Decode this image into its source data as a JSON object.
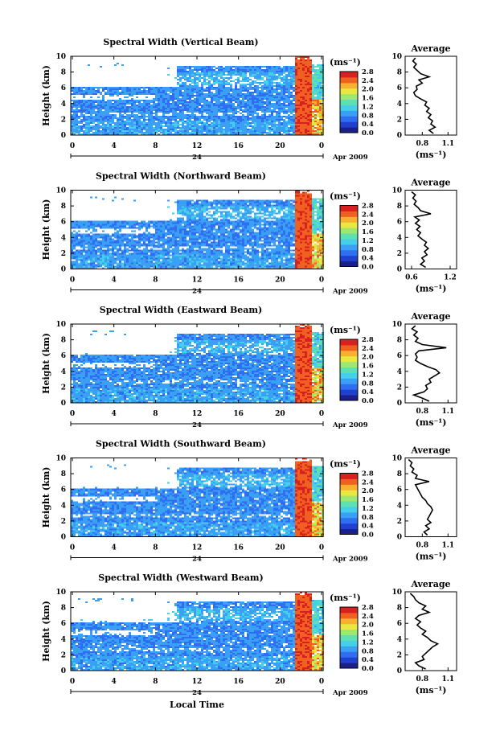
{
  "chart_data": {
    "type": "heatmap",
    "shared": {
      "ylabel": "Height (km)",
      "yticks": [
        "0",
        "2",
        "4",
        "6",
        "8",
        "10"
      ],
      "xticks": [
        "0",
        "4",
        "8",
        "12",
        "16",
        "20",
        "0"
      ],
      "x_sublabel": "24",
      "date_label": "Apr 2009",
      "xlabel": "Local Time",
      "colorbar_unit": "(ms⁻¹)",
      "colorbar_ticks": [
        "0.0",
        "0.4",
        "0.8",
        "1.2",
        "1.6",
        "2.0",
        "2.4",
        "2.8"
      ],
      "colorbar_colors": [
        "#1a1f8a",
        "#2040d0",
        "#2f6ef0",
        "#3aa0f5",
        "#45cfe8",
        "#5ee0b0",
        "#9ce870",
        "#e8e840",
        "#f8b030",
        "#f06020",
        "#d82020"
      ],
      "avg_title": "Average",
      "avg_unit": "(ms⁻¹)",
      "avg_yticks": [
        "0",
        "2",
        "4",
        "6",
        "8",
        "10"
      ]
    },
    "panels": [
      {
        "title": "Spectral Width (Vertical Beam)",
        "avg_xticks": [
          "0.8",
          "1.1"
        ],
        "avg_xrange": [
          0.6,
          1.2
        ],
        "avg_profile": [
          [
            0.2,
            0.93
          ],
          [
            0.6,
            0.88
          ],
          [
            1.0,
            0.95
          ],
          [
            1.4,
            0.9
          ],
          [
            1.8,
            0.92
          ],
          [
            2.2,
            0.87
          ],
          [
            2.6,
            0.9
          ],
          [
            3.0,
            0.85
          ],
          [
            3.4,
            0.88
          ],
          [
            3.8,
            0.83
          ],
          [
            4.2,
            0.85
          ],
          [
            4.6,
            0.78
          ],
          [
            5.0,
            0.72
          ],
          [
            5.4,
            0.7
          ],
          [
            5.8,
            0.74
          ],
          [
            6.2,
            0.73
          ],
          [
            6.6,
            0.8
          ],
          [
            7.0,
            0.76
          ],
          [
            7.4,
            0.88
          ],
          [
            7.8,
            0.78
          ],
          [
            8.2,
            0.74
          ],
          [
            8.6,
            0.7
          ],
          [
            9.0,
            0.73
          ],
          [
            9.4,
            0.69
          ],
          [
            9.8,
            0.72
          ]
        ]
      },
      {
        "title": "Spectral Width (Northward Beam)",
        "avg_xticks": [
          "0.6",
          "1.2"
        ],
        "avg_xrange": [
          0.5,
          1.3
        ],
        "avg_profile": [
          [
            0.2,
            0.82
          ],
          [
            0.6,
            0.74
          ],
          [
            1.0,
            0.8
          ],
          [
            1.4,
            0.76
          ],
          [
            1.8,
            0.84
          ],
          [
            2.2,
            0.8
          ],
          [
            2.6,
            0.86
          ],
          [
            3.0,
            0.8
          ],
          [
            3.4,
            0.83
          ],
          [
            3.8,
            0.76
          ],
          [
            4.2,
            0.7
          ],
          [
            4.6,
            0.74
          ],
          [
            5.0,
            0.68
          ],
          [
            5.4,
            0.73
          ],
          [
            5.8,
            0.66
          ],
          [
            6.2,
            0.72
          ],
          [
            6.6,
            0.65
          ],
          [
            7.0,
            0.9
          ],
          [
            7.4,
            0.74
          ],
          [
            7.8,
            0.7
          ],
          [
            8.2,
            0.64
          ],
          [
            8.6,
            0.67
          ],
          [
            9.0,
            0.62
          ],
          [
            9.4,
            0.66
          ],
          [
            9.8,
            0.6
          ]
        ]
      },
      {
        "title": "Spectral Width (Eastward Beam)",
        "avg_xticks": [
          "0.8",
          "1.1"
        ],
        "avg_xrange": [
          0.6,
          1.2
        ],
        "avg_profile": [
          [
            0.2,
            0.88
          ],
          [
            0.6,
            0.8
          ],
          [
            1.0,
            0.7
          ],
          [
            1.4,
            0.82
          ],
          [
            1.8,
            0.86
          ],
          [
            2.2,
            0.84
          ],
          [
            2.6,
            0.9
          ],
          [
            3.0,
            0.88
          ],
          [
            3.4,
            0.94
          ],
          [
            3.8,
            1.0
          ],
          [
            4.2,
            0.96
          ],
          [
            4.6,
            0.86
          ],
          [
            5.0,
            0.78
          ],
          [
            5.4,
            0.72
          ],
          [
            5.8,
            0.74
          ],
          [
            6.2,
            0.72
          ],
          [
            6.6,
            0.76
          ],
          [
            7.0,
            1.08
          ],
          [
            7.4,
            0.8
          ],
          [
            7.8,
            0.72
          ],
          [
            8.2,
            0.75
          ],
          [
            8.6,
            0.7
          ],
          [
            9.0,
            0.74
          ],
          [
            9.4,
            0.68
          ],
          [
            9.8,
            0.72
          ]
        ]
      },
      {
        "title": "Spectral Width (Southward Beam)",
        "avg_xticks": [
          "0.8",
          "1.1"
        ],
        "avg_xrange": [
          0.6,
          1.2
        ],
        "avg_profile": [
          [
            0.2,
            0.86
          ],
          [
            0.6,
            0.82
          ],
          [
            1.0,
            0.88
          ],
          [
            1.4,
            0.84
          ],
          [
            1.8,
            0.9
          ],
          [
            2.2,
            0.86
          ],
          [
            2.6,
            0.88
          ],
          [
            3.0,
            0.9
          ],
          [
            3.4,
            0.92
          ],
          [
            3.8,
            0.9
          ],
          [
            4.2,
            0.86
          ],
          [
            4.6,
            0.84
          ],
          [
            5.0,
            0.8
          ],
          [
            5.4,
            0.78
          ],
          [
            5.8,
            0.76
          ],
          [
            6.2,
            0.74
          ],
          [
            6.6,
            0.72
          ],
          [
            7.0,
            0.88
          ],
          [
            7.4,
            0.72
          ],
          [
            7.8,
            0.74
          ],
          [
            8.2,
            0.68
          ],
          [
            8.6,
            0.7
          ],
          [
            9.0,
            0.66
          ],
          [
            9.4,
            0.68
          ],
          [
            9.8,
            0.64
          ]
        ]
      },
      {
        "title": "Spectral Width (Westward Beam)",
        "avg_xticks": [
          "0.8",
          "1.1"
        ],
        "avg_xrange": [
          0.6,
          1.2
        ],
        "avg_profile": [
          [
            0.2,
            0.84
          ],
          [
            0.6,
            0.76
          ],
          [
            1.0,
            0.72
          ],
          [
            1.4,
            0.82
          ],
          [
            1.8,
            0.8
          ],
          [
            2.2,
            0.84
          ],
          [
            2.6,
            0.88
          ],
          [
            3.0,
            0.92
          ],
          [
            3.4,
            0.98
          ],
          [
            3.8,
            0.9
          ],
          [
            4.2,
            0.86
          ],
          [
            4.6,
            0.8
          ],
          [
            5.0,
            0.84
          ],
          [
            5.4,
            0.78
          ],
          [
            5.8,
            0.74
          ],
          [
            6.2,
            0.78
          ],
          [
            6.6,
            0.72
          ],
          [
            7.0,
            0.76
          ],
          [
            7.4,
            0.88
          ],
          [
            7.8,
            0.8
          ],
          [
            8.2,
            0.84
          ],
          [
            8.6,
            0.76
          ],
          [
            9.0,
            0.72
          ],
          [
            9.4,
            0.7
          ],
          [
            9.8,
            0.66
          ]
        ]
      }
    ]
  }
}
